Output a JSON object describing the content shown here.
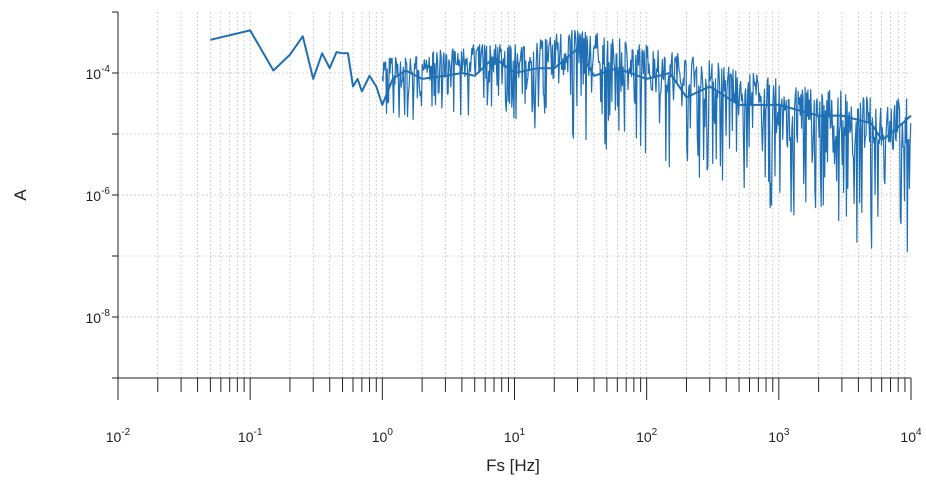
{
  "chart_data": {
    "type": "line",
    "title": "",
    "xlabel": "Fs [Hz]",
    "ylabel": "A",
    "xscale": "log",
    "yscale": "log",
    "xlim": [
      0.01,
      10000
    ],
    "ylim": [
      1e-09,
      0.001
    ],
    "x_ticks": [
      {
        "base": "10",
        "exp": "-2"
      },
      {
        "base": "10",
        "exp": "-1"
      },
      {
        "base": "10",
        "exp": "0"
      },
      {
        "base": "10",
        "exp": "1"
      },
      {
        "base": "10",
        "exp": "2"
      },
      {
        "base": "10",
        "exp": "3"
      },
      {
        "base": "10",
        "exp": "4"
      }
    ],
    "y_ticks": [
      {
        "value": 0.0001,
        "base": "10",
        "exp": "-4"
      },
      {
        "value": 1e-06,
        "base": "10",
        "exp": "-6"
      },
      {
        "value": 1e-08,
        "base": "10",
        "exp": "-8"
      }
    ],
    "grid": true,
    "series_color": "#1f6fb5",
    "series": [
      {
        "name": "",
        "x": [
          0.05,
          0.1,
          0.15,
          0.2,
          0.25,
          0.3,
          0.35,
          0.4,
          0.45,
          0.5,
          0.55,
          0.6,
          0.65,
          0.7,
          0.8,
          0.9,
          1.0,
          1.2,
          1.5,
          2,
          3,
          4,
          5,
          7,
          10,
          15,
          20,
          30,
          40,
          60,
          100,
          150,
          200,
          300,
          500,
          1000,
          2000,
          3000,
          5000,
          6000,
          7000,
          10000
        ],
        "y": [
          0.00035,
          0.0005,
          0.00011,
          0.0002,
          0.0004,
          8e-05,
          0.00021,
          0.00012,
          0.00022,
          0.00021,
          0.00021,
          6e-05,
          8e-05,
          5e-05,
          9e-05,
          6e-05,
          3e-05,
          8e-05,
          0.00011,
          8e-05,
          9e-05,
          0.0001,
          9e-05,
          0.00018,
          0.0001,
          0.00012,
          0.00012,
          0.00025,
          9e-05,
          0.00012,
          8e-05,
          0.0001,
          4e-05,
          6e-05,
          3e-05,
          3e-05,
          2e-05,
          2e-05,
          1.5e-05,
          8e-06,
          1e-05,
          2e-05
        ]
      }
    ],
    "noise_band": {
      "x": [
        1,
        2,
        3,
        5,
        10,
        20,
        30,
        50,
        100,
        200,
        300,
        500,
        1000,
        2000,
        3000,
        5000,
        10000
      ],
      "upper": [
        0.00018,
        0.0002,
        0.00025,
        0.0003,
        0.0003,
        0.00045,
        0.0006,
        0.0004,
        0.0003,
        0.0002,
        0.00018,
        0.00012,
        8e-05,
        6e-05,
        5e-05,
        4e-05,
        4e-05
      ],
      "lower": [
        1e-05,
        2e-05,
        2e-05,
        2e-05,
        1.5e-05,
        1e-05,
        8e-06,
        5e-06,
        3e-06,
        2e-06,
        1.5e-06,
        1e-06,
        5e-07,
        3e-07,
        2e-07,
        1e-07,
        1e-07
      ]
    }
  }
}
